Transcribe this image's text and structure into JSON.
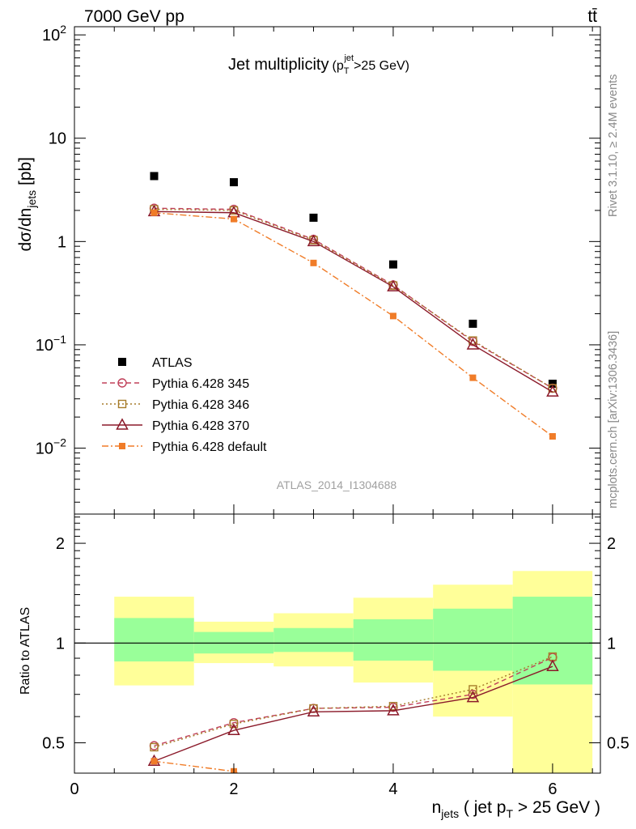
{
  "header": {
    "energy_label": "7000 GeV pp",
    "process_label": "tt̄",
    "side_rivet": "Rivet 3.1.10, ≥ 2.4M events",
    "side_mcplots": "mcplots.cern.ch [arXiv:1306.3436]"
  },
  "chart_data": [
    {
      "type": "line",
      "title": "Jet multiplicity",
      "title_suffix": {
        "main": "(p",
        "sub": "T",
        "sup": "jet",
        "tail": ">25 GeV)"
      },
      "ylabel": "dσ/dn",
      "ylabel_sub": "jets",
      "ylabel_tail": " [pb]",
      "yscale": "log",
      "ylim": [
        0.0023,
        120
      ],
      "xlim": [
        0,
        6.6
      ],
      "yticks": [
        {
          "value": 0.01,
          "base": "10",
          "exp": "−2"
        },
        {
          "value": 0.1,
          "base": "10",
          "exp": "−1"
        },
        {
          "value": 1,
          "base": "1",
          "exp": ""
        },
        {
          "value": 10,
          "base": "10",
          "exp": ""
        },
        {
          "value": 100,
          "base": "10",
          "exp": "2"
        }
      ],
      "watermark": "ATLAS_2014_I1304688",
      "legend_position": "lower-left",
      "series": [
        {
          "name": "ATLAS",
          "color": "#000000",
          "marker": "filled-square",
          "line": "none",
          "x": [
            1,
            2,
            3,
            4,
            5,
            6
          ],
          "y": [
            4.3,
            3.75,
            1.7,
            0.6,
            0.16,
            0.042
          ]
        },
        {
          "name": "Pythia 6.428 345",
          "color": "#c0405a",
          "marker": "open-circle",
          "line": "dashed",
          "x": [
            1,
            2,
            3,
            4,
            5,
            6
          ],
          "y": [
            2.1,
            2.05,
            1.05,
            0.38,
            0.108,
            0.038
          ]
        },
        {
          "name": "Pythia 6.428 346",
          "color": "#a67c2a",
          "marker": "open-square",
          "line": "dotted",
          "x": [
            1,
            2,
            3,
            4,
            5,
            6
          ],
          "y": [
            2.05,
            2.0,
            1.03,
            0.375,
            0.11,
            0.038
          ]
        },
        {
          "name": "Pythia 6.428 370",
          "color": "#8b1a2a",
          "marker": "open-triangle",
          "line": "solid",
          "x": [
            1,
            2,
            3,
            4,
            5,
            6
          ],
          "y": [
            1.95,
            1.9,
            1.0,
            0.365,
            0.1,
            0.035
          ]
        },
        {
          "name": "Pythia 6.428 default",
          "color": "#f07c28",
          "marker": "filled-small-square",
          "line": "dashdot",
          "x": [
            1,
            2,
            3,
            4,
            5,
            6
          ],
          "y": [
            1.9,
            1.65,
            0.62,
            0.19,
            0.048,
            0.013
          ]
        }
      ]
    },
    {
      "type": "line",
      "ylabel": "Ratio to ATLAS",
      "xlabel_main": "n",
      "xlabel_sub": "jets",
      "xlabel_mid": " ( jet p",
      "xlabel_sub2": "T",
      "xlabel_tail": " > 25 GeV )",
      "yscale": "log",
      "ylim": [
        0.405,
        2.45
      ],
      "xlim": [
        0,
        6.6
      ],
      "xticks": [
        0,
        2,
        4,
        6
      ],
      "yticks": [
        0.5,
        1,
        2
      ],
      "reference_line": 1,
      "bands": [
        {
          "x0": 0.5,
          "x1": 1.5,
          "yellow": [
            0.745,
            1.38
          ],
          "green": [
            0.88,
            1.19
          ]
        },
        {
          "x0": 1.5,
          "x1": 2.5,
          "yellow": [
            0.87,
            1.16
          ],
          "green": [
            0.93,
            1.08
          ]
        },
        {
          "x0": 2.5,
          "x1": 3.5,
          "yellow": [
            0.85,
            1.23
          ],
          "green": [
            0.94,
            1.11
          ]
        },
        {
          "x0": 3.5,
          "x1": 4.5,
          "yellow": [
            0.76,
            1.37
          ],
          "green": [
            0.885,
            1.18
          ]
        },
        {
          "x0": 4.5,
          "x1": 5.5,
          "yellow": [
            0.6,
            1.5
          ],
          "green": [
            0.825,
            1.27
          ]
        },
        {
          "x0": 5.5,
          "x1": 6.5,
          "yellow": [
            0.37,
            1.65
          ],
          "green": [
            0.75,
            1.38
          ]
        }
      ],
      "series": [
        {
          "name": "Pythia 6.428 345",
          "color": "#c0405a",
          "marker": "open-circle",
          "line": "dashed",
          "x": [
            1,
            2,
            3,
            4,
            5,
            6
          ],
          "y": [
            0.49,
            0.575,
            0.635,
            0.64,
            0.7,
            0.905
          ]
        },
        {
          "name": "Pythia 6.428 346",
          "color": "#a67c2a",
          "marker": "open-square",
          "line": "dotted",
          "x": [
            1,
            2,
            3,
            4,
            5,
            6
          ],
          "y": [
            0.485,
            0.57,
            0.635,
            0.645,
            0.725,
            0.91
          ]
        },
        {
          "name": "Pythia 6.428 370",
          "color": "#8b1a2a",
          "marker": "open-triangle",
          "line": "solid",
          "x": [
            1,
            2,
            3,
            4,
            5,
            6
          ],
          "y": [
            0.44,
            0.545,
            0.62,
            0.625,
            0.685,
            0.85
          ]
        },
        {
          "name": "Pythia 6.428 default",
          "color": "#f07c28",
          "marker": "filled-small-square",
          "line": "dashdot",
          "x": [
            1,
            2,
            2.5
          ],
          "y": [
            0.44,
            0.41,
            0.37
          ]
        }
      ]
    }
  ]
}
